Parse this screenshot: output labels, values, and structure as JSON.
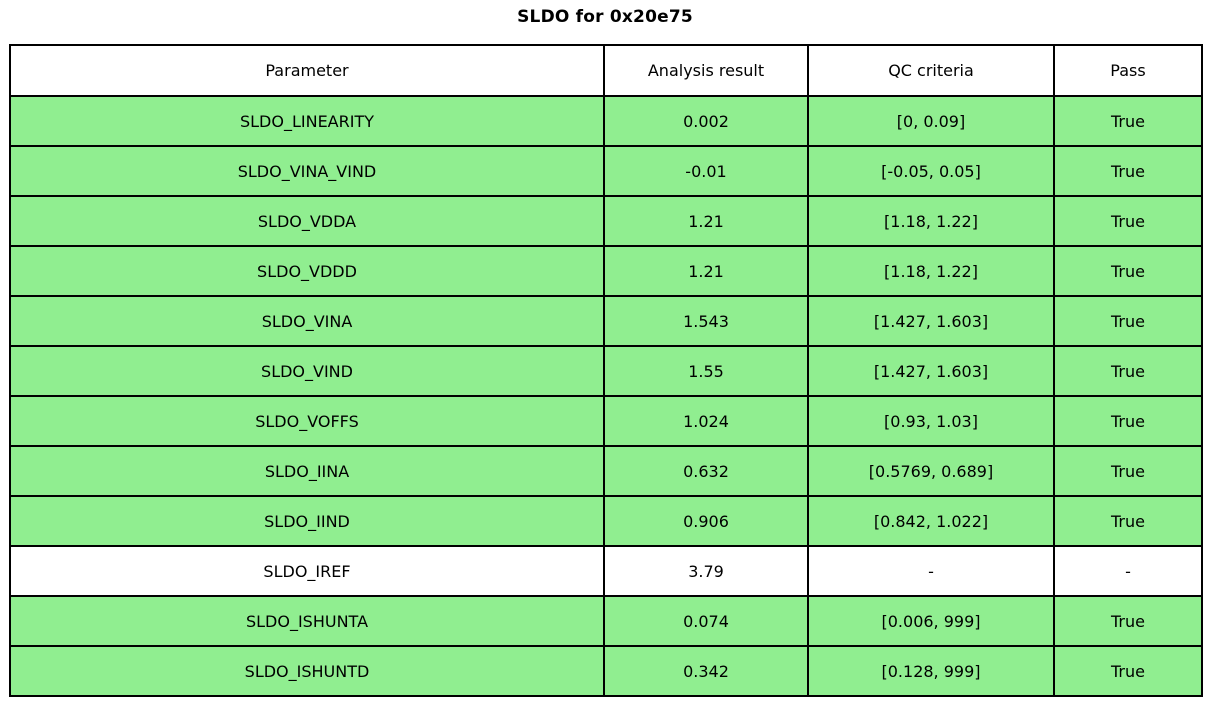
{
  "chart_data": {
    "type": "table",
    "title": "SLDO for 0x20e75",
    "columns": [
      "Parameter",
      "Analysis result",
      "QC criteria",
      "Pass"
    ],
    "rows": [
      {
        "cells": [
          "SLDO_LINEARITY",
          "0.002",
          "[0, 0.09]",
          "True"
        ],
        "highlight": true
      },
      {
        "cells": [
          "SLDO_VINA_VIND",
          "-0.01",
          "[-0.05, 0.05]",
          "True"
        ],
        "highlight": true
      },
      {
        "cells": [
          "SLDO_VDDA",
          "1.21",
          "[1.18, 1.22]",
          "True"
        ],
        "highlight": true
      },
      {
        "cells": [
          "SLDO_VDDD",
          "1.21",
          "[1.18, 1.22]",
          "True"
        ],
        "highlight": true
      },
      {
        "cells": [
          "SLDO_VINA",
          "1.543",
          "[1.427, 1.603]",
          "True"
        ],
        "highlight": true
      },
      {
        "cells": [
          "SLDO_VIND",
          "1.55",
          "[1.427, 1.603]",
          "True"
        ],
        "highlight": true
      },
      {
        "cells": [
          "SLDO_VOFFS",
          "1.024",
          "[0.93, 1.03]",
          "True"
        ],
        "highlight": true
      },
      {
        "cells": [
          "SLDO_IINA",
          "0.632",
          "[0.5769, 0.689]",
          "True"
        ],
        "highlight": true
      },
      {
        "cells": [
          "SLDO_IIND",
          "0.906",
          "[0.842, 1.022]",
          "True"
        ],
        "highlight": true
      },
      {
        "cells": [
          "SLDO_IREF",
          "3.79",
          "-",
          "-"
        ],
        "highlight": false
      },
      {
        "cells": [
          "SLDO_ISHUNTA",
          "0.074",
          "[0.006, 999]",
          "True"
        ],
        "highlight": true
      },
      {
        "cells": [
          "SLDO_ISHUNTD",
          "0.342",
          "[0.128, 999]",
          "True"
        ],
        "highlight": true
      }
    ],
    "layout": {
      "pass_row_color": "#90EE90",
      "plain_row_color": "#FFFFFF",
      "header_row_color": "#FFFFFF",
      "border_color": "#000000",
      "legend": "none",
      "grid": "table-borders"
    }
  }
}
